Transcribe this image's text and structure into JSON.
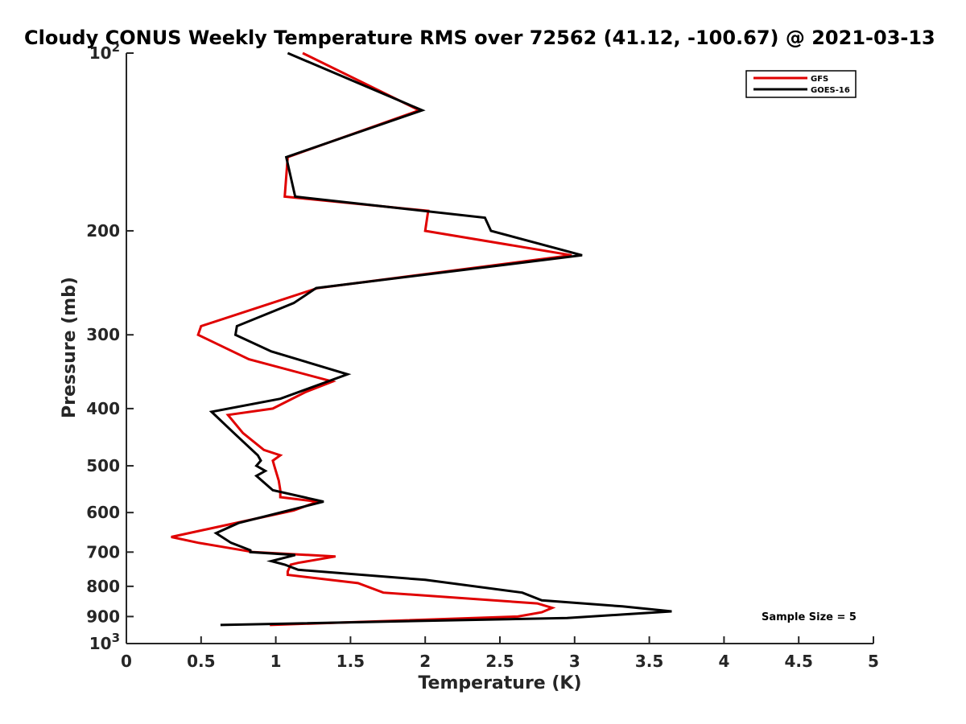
{
  "chart_data": {
    "type": "line",
    "title": "Cloudy CONUS Weekly Temperature RMS over 72562 (41.12, -100.67) @ 2021-03-13",
    "xlabel": "Temperature (K)",
    "ylabel": "Pressure (mb)",
    "xlim": [
      0,
      5
    ],
    "ylim": [
      100,
      1000
    ],
    "y_scale": "log",
    "y_reversed": true,
    "grid": false,
    "legend_position": "top-right",
    "x_ticks": [
      0,
      0.5,
      1,
      1.5,
      2,
      2.5,
      3,
      3.5,
      4,
      4.5,
      5
    ],
    "x_tick_labels": [
      "0",
      "0.5",
      "1",
      "1.5",
      "2",
      "2.5",
      "3",
      "3.5",
      "4",
      "4.5",
      "5"
    ],
    "y_ticks": [
      100,
      200,
      300,
      400,
      500,
      600,
      700,
      800,
      900,
      1000
    ],
    "y_tick_labels": [
      {
        "base": "10",
        "exp": "2"
      },
      {
        "base": "200"
      },
      {
        "base": "300"
      },
      {
        "base": "400"
      },
      {
        "base": "500"
      },
      {
        "base": "600"
      },
      {
        "base": "700"
      },
      {
        "base": "800"
      },
      {
        "base": "900"
      },
      {
        "base": "10",
        "exp": "3"
      }
    ],
    "annotation": "Sample Size = 5",
    "series": [
      {
        "name": "GFS",
        "color": "#e00000",
        "points": [
          [
            1.18,
            100
          ],
          [
            1.96,
            125
          ],
          [
            1.08,
            150
          ],
          [
            1.06,
            175
          ],
          [
            2.02,
            185
          ],
          [
            2.0,
            200
          ],
          [
            2.98,
            220
          ],
          [
            1.28,
            250
          ],
          [
            0.5,
            290
          ],
          [
            0.48,
            300
          ],
          [
            0.82,
            330
          ],
          [
            1.38,
            360
          ],
          [
            1.2,
            375
          ],
          [
            0.98,
            400
          ],
          [
            0.68,
            410
          ],
          [
            0.78,
            440
          ],
          [
            0.92,
            470
          ],
          [
            1.03,
            480
          ],
          [
            0.98,
            490
          ],
          [
            0.99,
            500
          ],
          [
            1.02,
            530
          ],
          [
            1.03,
            550
          ],
          [
            1.03,
            565
          ],
          [
            1.28,
            575
          ],
          [
            1.12,
            595
          ],
          [
            0.3,
            660
          ],
          [
            0.48,
            675
          ],
          [
            0.85,
            700
          ],
          [
            1.4,
            712
          ],
          [
            1.15,
            730
          ],
          [
            1.1,
            735
          ],
          [
            1.08,
            755
          ],
          [
            1.08,
            765
          ],
          [
            1.55,
            790
          ],
          [
            1.72,
            820
          ],
          [
            2.75,
            855
          ],
          [
            2.85,
            870
          ],
          [
            2.78,
            885
          ],
          [
            2.62,
            900
          ],
          [
            0.96,
            930
          ]
        ]
      },
      {
        "name": "GOES-16",
        "color": "#000000",
        "points": [
          [
            1.08,
            100
          ],
          [
            1.98,
            125
          ],
          [
            1.07,
            150
          ],
          [
            1.13,
            175
          ],
          [
            2.4,
            190
          ],
          [
            2.44,
            200
          ],
          [
            3.05,
            220
          ],
          [
            1.27,
            250
          ],
          [
            1.12,
            265
          ],
          [
            0.74,
            290
          ],
          [
            0.73,
            300
          ],
          [
            0.97,
            320
          ],
          [
            1.48,
            350
          ],
          [
            1.03,
            385
          ],
          [
            0.57,
            405
          ],
          [
            0.72,
            440
          ],
          [
            0.88,
            480
          ],
          [
            0.9,
            490
          ],
          [
            0.87,
            500
          ],
          [
            0.93,
            510
          ],
          [
            0.87,
            520
          ],
          [
            0.98,
            550
          ],
          [
            1.32,
            575
          ],
          [
            0.75,
            625
          ],
          [
            0.6,
            650
          ],
          [
            0.7,
            675
          ],
          [
            0.83,
            695
          ],
          [
            0.83,
            700
          ],
          [
            1.13,
            708
          ],
          [
            0.97,
            725
          ],
          [
            1.06,
            735
          ],
          [
            1.15,
            750
          ],
          [
            2.0,
            780
          ],
          [
            2.65,
            820
          ],
          [
            2.78,
            845
          ],
          [
            3.32,
            865
          ],
          [
            3.65,
            882
          ],
          [
            2.95,
            905
          ],
          [
            0.63,
            930
          ]
        ]
      }
    ]
  }
}
